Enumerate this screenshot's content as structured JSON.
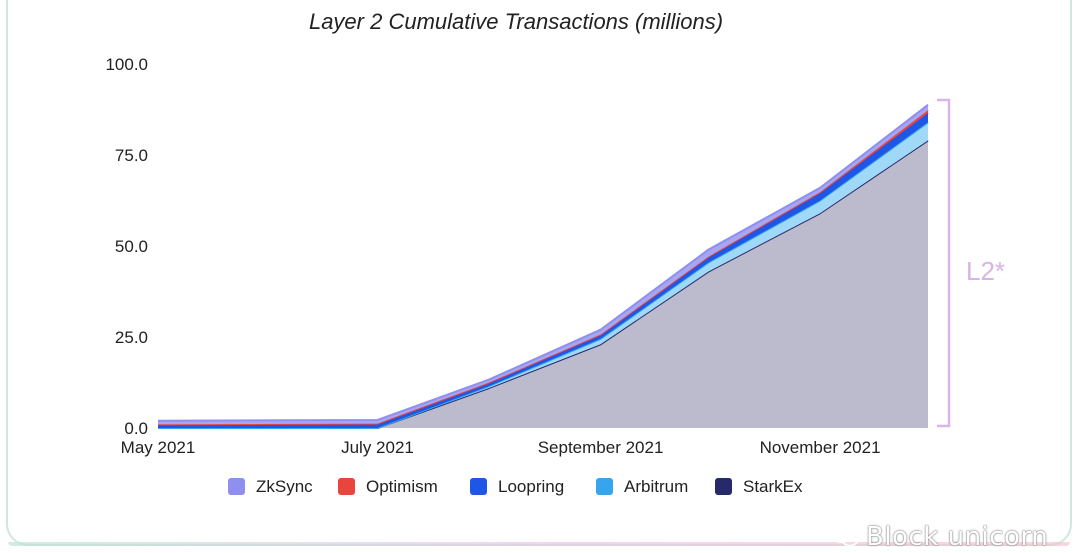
{
  "chart_data": {
    "type": "area",
    "stacked": true,
    "title": "Layer 2 Cumulative Transactions (millions)",
    "x": [
      "2021-05-01",
      "2021-07-01",
      "2021-08-01",
      "2021-09-01",
      "2021-10-01",
      "2021-11-01",
      "2021-12-01"
    ],
    "xticks": [
      "May 2021",
      "July 2021",
      "September 2021",
      "November 2021"
    ],
    "yticks": [
      "0.0",
      "25.0",
      "50.0",
      "75.0",
      "100.0"
    ],
    "ylim": [
      0,
      100
    ],
    "series": [
      {
        "name": "StarkEx",
        "color": "#262a6b",
        "values": [
          0.0,
          0.0,
          11.0,
          23.0,
          43.0,
          59.0,
          79.0
        ]
      },
      {
        "name": "Arbitrum",
        "color": "#36a5ee",
        "values": [
          0.0,
          0.0,
          0.5,
          1.5,
          2.5,
          3.5,
          5.0
        ]
      },
      {
        "name": "Loopring",
        "color": "#1e56e6",
        "values": [
          1.0,
          1.2,
          1.0,
          1.2,
          1.5,
          2.0,
          2.5
        ]
      },
      {
        "name": "Optimism",
        "color": "#e8453c",
        "values": [
          0.0,
          0.0,
          0.0,
          0.0,
          0.1,
          0.3,
          0.8
        ]
      },
      {
        "name": "ZkSync",
        "color": "#8f8ff0",
        "values": [
          1.0,
          1.0,
          0.8,
          1.3,
          1.9,
          1.2,
          1.5
        ]
      }
    ],
    "legend": [
      "ZkSync",
      "Optimism",
      "Loopring",
      "Arbitrum",
      "StarkEx"
    ],
    "legend_position": "bottom",
    "annotation": "L2*",
    "grid": false
  },
  "watermark": "Block unicorn"
}
